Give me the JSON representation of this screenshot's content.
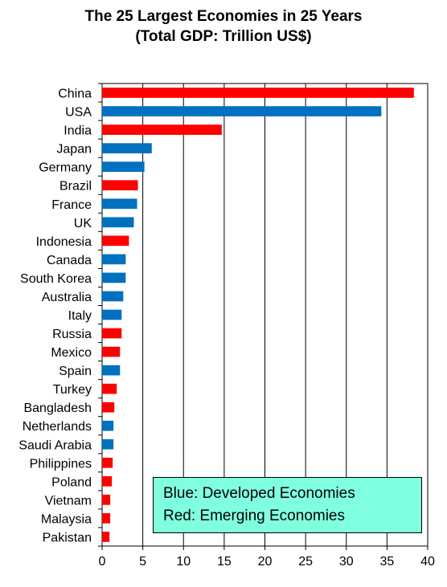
{
  "title": {
    "line1": "The 25 Largest Economies in 25 Years",
    "line2": "(Total GDP: Trillion US$)"
  },
  "legend": {
    "line1": "Blue: Developed Economies",
    "line2": "Red: Emerging Economies"
  },
  "colors": {
    "developed": "#0070c0",
    "emerging": "#ff0000"
  },
  "chart_data": {
    "type": "bar",
    "orientation": "horizontal",
    "title": "The 25 Largest Economies in 25 Years (Total GDP: Trillion US$)",
    "xlim": [
      0,
      40
    ],
    "xticks": [
      0,
      5,
      10,
      15,
      20,
      25,
      30,
      35,
      40
    ],
    "grid": "vertical",
    "legend_position": "bottom-right",
    "categories": [
      "China",
      "USA",
      "India",
      "Japan",
      "Germany",
      "Brazil",
      "France",
      "UK",
      "Indonesia",
      "Canada",
      "South Korea",
      "Australia",
      "Italy",
      "Russia",
      "Mexico",
      "Spain",
      "Turkey",
      "Bangladesh",
      "Netherlands",
      "Saudi Arabia",
      "Philippines",
      "Poland",
      "Vietnam",
      "Malaysia",
      "Pakistan"
    ],
    "values": [
      38.3,
      34.3,
      14.7,
      6.1,
      5.2,
      4.4,
      4.3,
      3.9,
      3.3,
      2.9,
      2.9,
      2.6,
      2.4,
      2.4,
      2.2,
      2.2,
      1.8,
      1.5,
      1.4,
      1.4,
      1.3,
      1.2,
      1.0,
      1.0,
      0.9
    ],
    "group": [
      "emerging",
      "developed",
      "emerging",
      "developed",
      "developed",
      "emerging",
      "developed",
      "developed",
      "emerging",
      "developed",
      "developed",
      "developed",
      "developed",
      "emerging",
      "emerging",
      "developed",
      "emerging",
      "emerging",
      "developed",
      "developed",
      "emerging",
      "emerging",
      "emerging",
      "emerging",
      "emerging"
    ]
  }
}
